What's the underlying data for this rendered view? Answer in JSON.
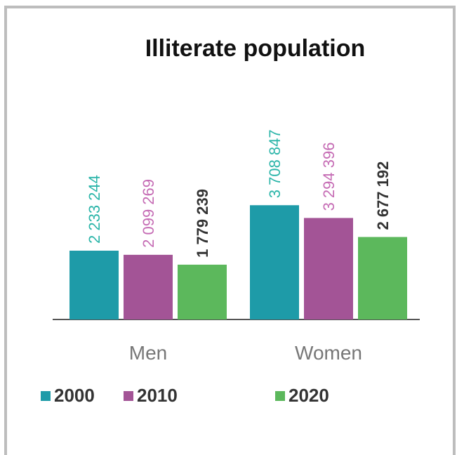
{
  "chart_data": {
    "type": "bar",
    "title": "Illiterate population",
    "categories": [
      "Men",
      "Women"
    ],
    "series": [
      {
        "name": "2000",
        "values": [
          2233244,
          3708847
        ],
        "labels": [
          "2 233 244",
          "3 708 847"
        ],
        "color": "#1e9ba8",
        "label_color": "#2bb5a9",
        "label_bold": false
      },
      {
        "name": "2010",
        "values": [
          2099269,
          3294396
        ],
        "labels": [
          "2 099 269",
          "3 294 396"
        ],
        "color": "#a35496",
        "label_color": "#c56bb4",
        "label_bold": false
      },
      {
        "name": "2020",
        "values": [
          1779239,
          2677192
        ],
        "labels": [
          "1 779 239",
          "2 677 192"
        ],
        "color": "#5cb85c",
        "label_color": "#333333",
        "label_bold": true
      }
    ],
    "ylim": [
      0,
      5500000
    ],
    "grid": false,
    "legend_position": "bottom-left"
  }
}
